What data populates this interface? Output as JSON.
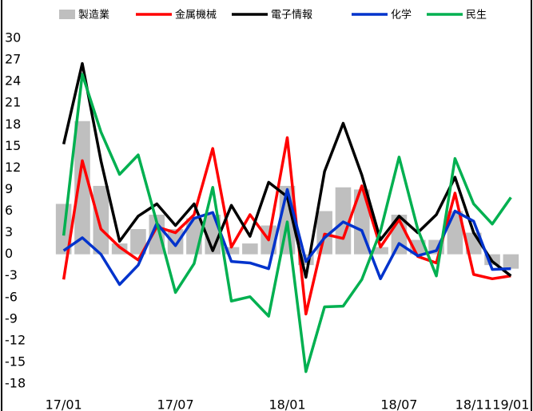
{
  "chart_data": {
    "type": "combo",
    "categories": [
      "17/01",
      null,
      null,
      null,
      null,
      null,
      "17/07",
      null,
      null,
      null,
      null,
      null,
      "18/01",
      null,
      null,
      null,
      null,
      null,
      "18/07",
      null,
      null,
      null,
      "18/11",
      null,
      "19/01"
    ],
    "series": [
      {
        "name": "製造業",
        "kind": "bar",
        "color": "#bfbfbf",
        "values": [
          7,
          18.5,
          9.5,
          1.5,
          3.5,
          5.5,
          3.5,
          5,
          5.5,
          1,
          1.5,
          4,
          9.5,
          -1.5,
          6,
          9.3,
          9,
          1,
          5.5,
          2,
          2,
          6,
          3,
          -1.5,
          -2
        ]
      },
      {
        "name": "金属機械",
        "kind": "line",
        "color": "#ff0000",
        "values": [
          -3.5,
          13,
          3.5,
          1,
          -0.8,
          3.8,
          3,
          5.5,
          14.7,
          1,
          5.5,
          2,
          16.2,
          -8.3,
          2.8,
          2.2,
          9.5,
          1,
          4.8,
          -0.3,
          -1.2,
          8.5,
          -2.8,
          -3.4,
          -3
        ]
      },
      {
        "name": "電子情報",
        "kind": "line",
        "color": "#000000",
        "values": [
          15.3,
          26.5,
          13,
          1.8,
          5.3,
          7,
          4,
          7,
          0.5,
          6.8,
          2.5,
          10,
          8,
          -3.2,
          11.5,
          18.2,
          11,
          2,
          5.3,
          3,
          5.5,
          10.7,
          3,
          -1,
          -3
        ]
      },
      {
        "name": "化学",
        "kind": "line",
        "color": "#0033cc",
        "values": [
          0.5,
          2.3,
          0,
          -4.2,
          -1.5,
          4.3,
          1.2,
          5,
          5.8,
          -1,
          -1.2,
          -2,
          9,
          -1,
          2.3,
          4.5,
          3.3,
          -3.4,
          1.5,
          -0.2,
          0.5,
          6,
          4.6,
          -2.1,
          -2
        ]
      },
      {
        "name": "民生",
        "kind": "line",
        "color": "#00b050",
        "values": [
          2.6,
          25,
          17,
          11.1,
          13.8,
          4.4,
          -5.3,
          -1.3,
          9.3,
          -6.5,
          -5.9,
          -8.6,
          4.5,
          -16.3,
          -7.3,
          -7.2,
          -3.5,
          3.2,
          13.5,
          3.5,
          -3,
          13.3,
          7,
          4.2,
          7.9
        ]
      }
    ],
    "ylim": [
      -18,
      30
    ],
    "yticks": [
      -18,
      -15,
      -12,
      -9,
      -6,
      -3,
      0,
      3,
      6,
      9,
      12,
      15,
      18,
      21,
      24,
      27,
      30
    ]
  }
}
